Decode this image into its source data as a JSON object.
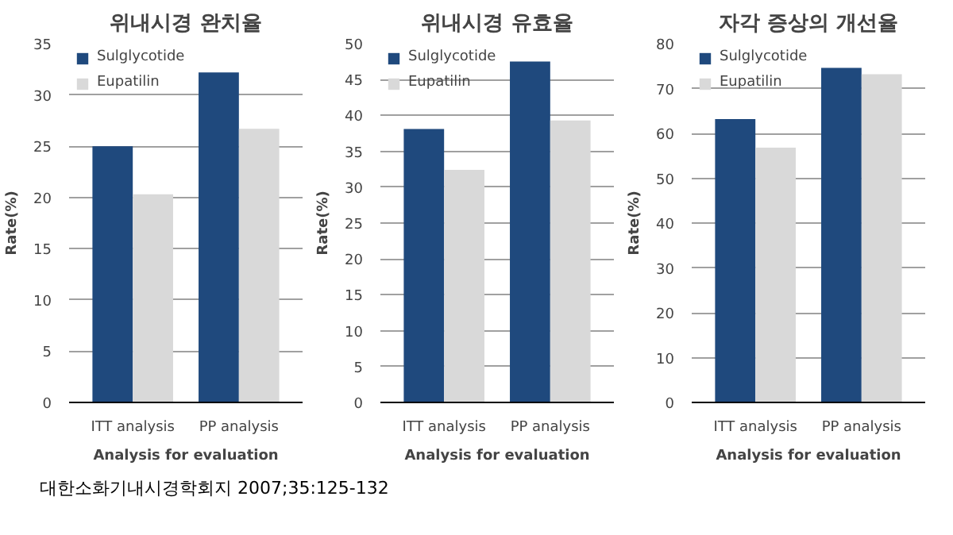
{
  "chart_data": [
    {
      "type": "bar",
      "title": "위내시경 완치율",
      "xlabel": "Analysis for evaluation",
      "ylabel": "Rate(%)",
      "categories": [
        "ITT analysis",
        "PP analysis"
      ],
      "series": [
        {
          "name": "Sulglycotide",
          "color": "#1f497d",
          "values": [
            25,
            32.2
          ]
        },
        {
          "name": "Eupatilin",
          "color": "#d9d9d9",
          "values": [
            20.3,
            26.7
          ]
        }
      ],
      "ylim": [
        0,
        35
      ],
      "yticks": [
        0,
        5,
        10,
        15,
        20,
        25,
        30,
        35
      ],
      "grid": "y",
      "legend": "top left"
    },
    {
      "type": "bar",
      "title": "위내시경 유효율",
      "xlabel": "Analysis for evaluation",
      "ylabel": "Rate(%)",
      "categories": [
        "ITT analysis",
        "PP analysis"
      ],
      "series": [
        {
          "name": "Sulglycotide",
          "color": "#1f497d",
          "values": [
            38.1,
            47.5
          ]
        },
        {
          "name": "Eupatilin",
          "color": "#d9d9d9",
          "values": [
            32.4,
            39.3
          ]
        }
      ],
      "ylim": [
        0,
        50
      ],
      "yticks": [
        0,
        5,
        10,
        15,
        20,
        25,
        30,
        35,
        40,
        45,
        50
      ],
      "grid": "y",
      "legend": "top left"
    },
    {
      "type": "bar",
      "title": "자각 증상의 개선율",
      "xlabel": "Analysis for evaluation",
      "ylabel": "Rate(%)",
      "categories": [
        "ITT analysis",
        "PP analysis"
      ],
      "series": [
        {
          "name": "Sulglycotide",
          "color": "#1f497d",
          "values": [
            63.2,
            74.6
          ]
        },
        {
          "name": "Eupatilin",
          "color": "#d9d9d9",
          "values": [
            56.8,
            73.2
          ]
        }
      ],
      "ylim": [
        0,
        80
      ],
      "yticks": [
        0,
        10,
        20,
        30,
        40,
        50,
        60,
        70,
        80
      ],
      "grid": "y",
      "legend": "top left",
      "annotations": [
        "대한소화기내시경학회지 2007;35:125-132"
      ]
    }
  ]
}
